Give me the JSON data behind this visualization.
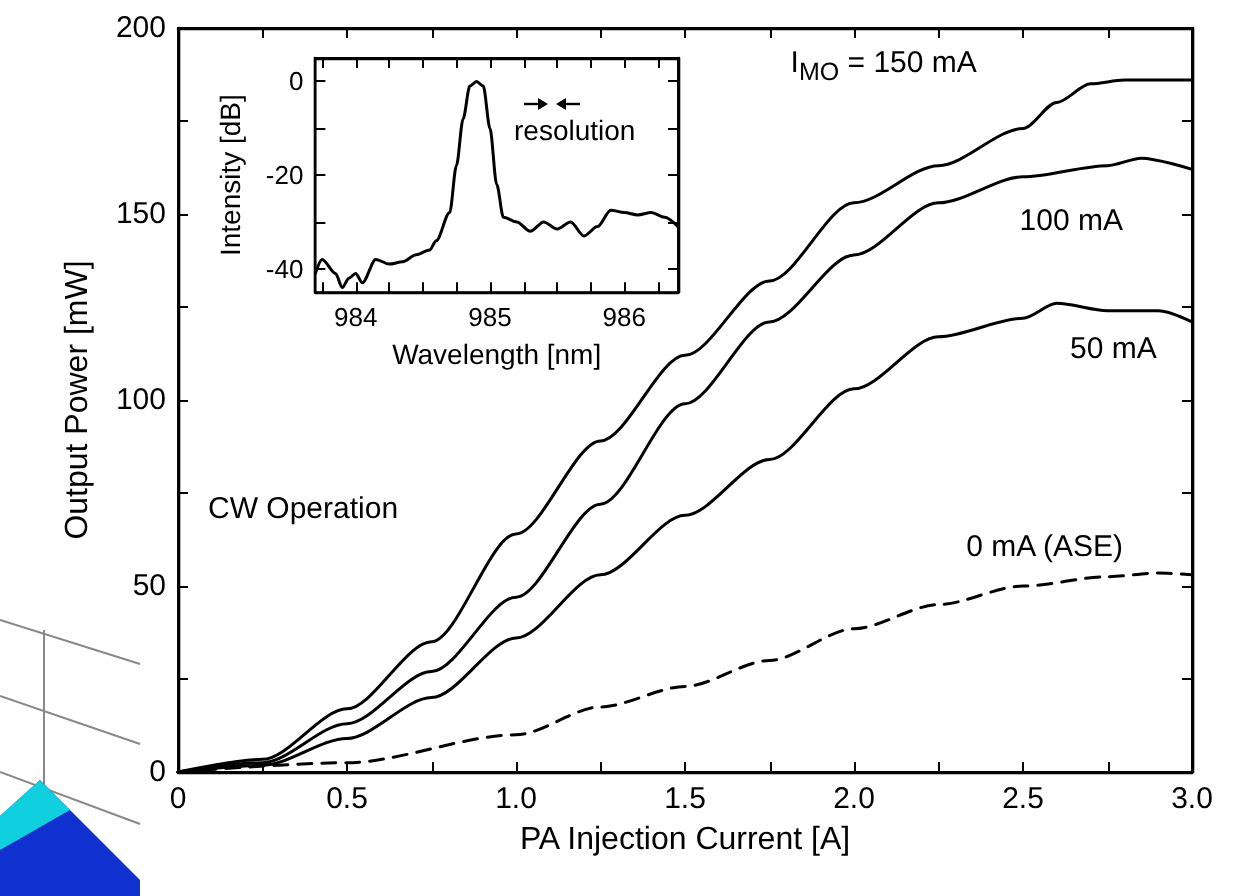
{
  "chart_data": [
    {
      "type": "line",
      "xlabel": "PA Injection Current [A]",
      "ylabel": "Output Power [mW]",
      "xlim": [
        0,
        3
      ],
      "ylim": [
        0,
        200
      ],
      "xticks": [
        0,
        {
          "value": 0.25,
          "label": null
        },
        0.5,
        {
          "value": 0.75,
          "label": null
        },
        {
          "value": 1,
          "label": "1.0"
        },
        {
          "value": 1.25,
          "label": null
        },
        1.5,
        {
          "value": 1.75,
          "label": null
        },
        {
          "value": 2,
          "label": "2.0"
        },
        {
          "value": 2.25,
          "label": null
        },
        2.5,
        {
          "value": 2.75,
          "label": null
        },
        {
          "value": 3,
          "label": "3.0"
        }
      ],
      "yticks": [
        0,
        {
          "value": 25,
          "label": null
        },
        50,
        {
          "value": 75,
          "label": null
        },
        100,
        {
          "value": 125,
          "label": null
        },
        150,
        {
          "value": 175,
          "label": null
        },
        200
      ],
      "grid": false,
      "marker": "none",
      "annotations": [
        "CW Operation"
      ],
      "series": [
        {
          "name": "I$_{MO}$ = 150 mA",
          "color": "#000000",
          "line_style": "solid",
          "x": [
            0,
            0.25,
            0.5,
            0.75,
            1.0,
            1.25,
            1.5,
            1.75,
            2.0,
            2.25,
            2.5,
            2.6,
            2.7,
            2.8,
            3.0
          ],
          "values": [
            0,
            3.4,
            17,
            35,
            64,
            89,
            112,
            132,
            153,
            163,
            173,
            180,
            185,
            186,
            186
          ]
        },
        {
          "name": "100 mA",
          "color": "#000000",
          "line_style": "solid",
          "x": [
            0,
            0.25,
            0.5,
            0.75,
            1.0,
            1.25,
            1.5,
            1.75,
            2.0,
            2.25,
            2.5,
            2.75,
            2.85,
            3.0
          ],
          "values": [
            0,
            2.5,
            13,
            27,
            47,
            72,
            99,
            121,
            139,
            153,
            160,
            163,
            165,
            162
          ]
        },
        {
          "name": "50 mA",
          "color": "#000000",
          "line_style": "solid",
          "x": [
            0,
            0.25,
            0.5,
            0.75,
            1.0,
            1.25,
            1.5,
            1.75,
            2.0,
            2.25,
            2.5,
            2.6,
            2.75,
            2.9,
            3.0
          ],
          "values": [
            0,
            1.8,
            9,
            20,
            36,
            53,
            69,
            84,
            103,
            117,
            122,
            126,
            124,
            124,
            121
          ]
        },
        {
          "name": "0 mA (ASE)",
          "color": "#000000",
          "line_style": "dashed",
          "x": [
            0,
            0.5,
            1.0,
            1.25,
            1.5,
            1.75,
            2.0,
            2.25,
            2.5,
            2.75,
            2.9,
            3.0
          ],
          "values": [
            0,
            2.5,
            10,
            17.5,
            23,
            30,
            38.5,
            45,
            50,
            52.5,
            53.5,
            53
          ]
        }
      ]
    },
    {
      "type": "line",
      "xlabel": "Wavelength [nm]",
      "ylabel": "Intensity [dB]",
      "xlim": [
        983.7,
        986.4
      ],
      "ylim": [
        -45,
        5
      ],
      "xticks": [
        {
          "value": 983.75,
          "label": null
        },
        984,
        {
          "value": 984.25,
          "label": null
        },
        {
          "value": 984.5,
          "label": null
        },
        {
          "value": 984.75,
          "label": null
        },
        985,
        {
          "value": 985.25,
          "label": null
        },
        {
          "value": 985.5,
          "label": null
        },
        {
          "value": 985.75,
          "label": null
        },
        986,
        {
          "value": 986.25,
          "label": null
        }
      ],
      "yticks": [
        -40,
        {
          "value": -30,
          "label": null
        },
        -20,
        {
          "value": -10,
          "label": null
        },
        0
      ],
      "grid": false,
      "marker": "none",
      "annotations": [
        "resolution"
      ],
      "series": [
        {
          "color": "#000000",
          "line_style": "solid",
          "x": [
            983.7,
            983.75,
            983.85,
            983.9,
            983.95,
            984.0,
            984.05,
            984.15,
            984.25,
            984.35,
            984.45,
            984.55,
            984.6,
            984.7,
            984.75,
            984.8,
            984.85,
            984.9,
            984.95,
            985.0,
            985.05,
            985.1,
            985.2,
            985.3,
            985.4,
            985.5,
            985.6,
            985.7,
            985.8,
            985.9,
            986.0,
            986.1,
            986.2,
            986.3,
            986.4
          ],
          "values": [
            -41,
            -38,
            -41,
            -44,
            -42,
            -41,
            -43,
            -38,
            -39,
            -38.5,
            -37,
            -36,
            -34,
            -28,
            -18,
            -8,
            -1,
            0,
            -1,
            -10,
            -22,
            -29,
            -30,
            -32,
            -30,
            -31.5,
            -30,
            -33,
            -31,
            -27.5,
            -28,
            -28.5,
            -28,
            -29,
            -31
          ]
        }
      ]
    }
  ]
}
